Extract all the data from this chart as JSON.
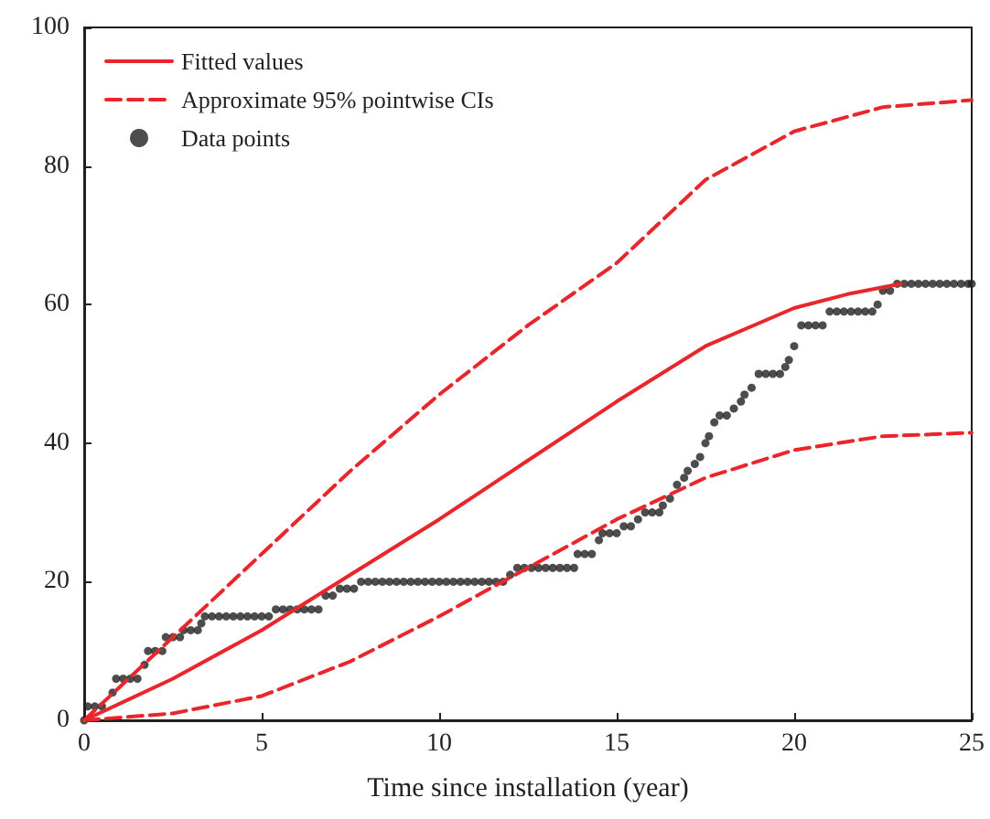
{
  "chart_data": {
    "type": "line",
    "xlabel": "Time since installation (year)",
    "xlim": [
      0,
      25
    ],
    "xticks": [
      0,
      5,
      10,
      15,
      20,
      25
    ],
    "ylim": [
      0,
      100
    ],
    "yticks": [
      0,
      20,
      40,
      60,
      80,
      100
    ],
    "grid": false,
    "legend": "top left",
    "series": [
      {
        "name": "Fitted values",
        "line_style": "solid",
        "marker": "none",
        "color": "#e8262b",
        "x": [
          0,
          2.5,
          5,
          7.5,
          10,
          12.5,
          15,
          17.5,
          20,
          21.5,
          23
        ],
        "values": [
          0,
          6,
          13,
          21,
          29,
          37.5,
          46,
          54,
          59.5,
          61.5,
          63
        ]
      },
      {
        "name": "Approximate 95% pointwise CIs",
        "line_style": "dashed",
        "marker": "none",
        "color": "#e8262b",
        "x": [
          0,
          2.5,
          5,
          7.5,
          10,
          12.5,
          15,
          17.5,
          20,
          22.5,
          25
        ],
        "values": [
          0,
          12,
          24,
          36,
          47,
          57,
          66,
          78,
          85,
          88.5,
          89.5
        ]
      },
      {
        "line_style": "dashed",
        "marker": "none",
        "color": "#e8262b",
        "x": [
          0,
          2.5,
          5,
          7.5,
          10,
          12.5,
          15,
          17.5,
          20,
          22.5,
          25
        ],
        "values": [
          0,
          1,
          3.5,
          8.5,
          15,
          22,
          29,
          35,
          39,
          41,
          41.5
        ]
      },
      {
        "name": "Data points",
        "type": "scatter",
        "marker": "circle",
        "color": "#231f20",
        "x": [
          0,
          0.1,
          0.3,
          0.5,
          0.8,
          0.9,
          1.1,
          1.3,
          1.5,
          1.7,
          1.8,
          2.0,
          2.2,
          2.3,
          2.5,
          2.7,
          2.8,
          3.0,
          3.2,
          3.3,
          3.4,
          3.6,
          3.8,
          4.0,
          4.2,
          4.4,
          4.6,
          4.8,
          5.0,
          5.2,
          5.4,
          5.6,
          5.8,
          6.0,
          6.2,
          6.4,
          6.6,
          6.8,
          7.0,
          7.2,
          7.4,
          7.6,
          7.8,
          8.0,
          8.2,
          8.4,
          8.6,
          8.8,
          9.0,
          9.2,
          9.4,
          9.6,
          9.8,
          10.0,
          10.2,
          10.4,
          10.6,
          10.8,
          11.0,
          11.2,
          11.4,
          11.6,
          11.8,
          12.0,
          12.2,
          12.4,
          12.6,
          12.8,
          13.0,
          13.2,
          13.4,
          13.6,
          13.8,
          13.9,
          14.1,
          14.3,
          14.5,
          14.6,
          14.8,
          15.0,
          15.2,
          15.4,
          15.6,
          15.8,
          16.0,
          16.2,
          16.3,
          16.5,
          16.7,
          16.9,
          17.0,
          17.2,
          17.35,
          17.5,
          17.6,
          17.75,
          17.9,
          18.1,
          18.3,
          18.5,
          18.6,
          18.8,
          19.0,
          19.2,
          19.4,
          19.6,
          19.75,
          19.85,
          20.0,
          20.2,
          20.4,
          20.6,
          20.8,
          21.0,
          21.2,
          21.4,
          21.6,
          21.8,
          22.0,
          22.2,
          22.35,
          22.5,
          22.7,
          22.9,
          23.1,
          23.3,
          23.5,
          23.7,
          23.9,
          24.1,
          24.3,
          24.5,
          24.7,
          24.9,
          25.0
        ],
        "values": [
          0,
          2,
          2,
          2,
          4,
          6,
          6,
          6,
          6,
          8,
          10,
          10,
          10,
          12,
          12,
          12,
          13,
          13,
          13,
          14,
          15,
          15,
          15,
          15,
          15,
          15,
          15,
          15,
          15,
          15,
          16,
          16,
          16,
          16,
          16,
          16,
          16,
          18,
          18,
          19,
          19,
          19,
          20,
          20,
          20,
          20,
          20,
          20,
          20,
          20,
          20,
          20,
          20,
          20,
          20,
          20,
          20,
          20,
          20,
          20,
          20,
          20,
          20,
          21,
          22,
          22,
          22,
          22,
          22,
          22,
          22,
          22,
          22,
          24,
          24,
          24,
          26,
          27,
          27,
          27,
          28,
          28,
          29,
          30,
          30,
          30,
          31,
          32,
          34,
          35,
          36,
          37,
          38,
          40,
          41,
          43,
          44,
          44,
          45,
          46,
          47,
          48,
          50,
          50,
          50,
          50,
          51,
          52,
          54,
          57,
          57,
          57,
          57,
          59,
          59,
          59,
          59,
          59,
          59,
          59,
          60,
          62,
          62,
          63,
          63,
          63,
          63,
          63,
          63,
          63,
          63,
          63,
          63,
          63,
          63
        ]
      }
    ]
  }
}
